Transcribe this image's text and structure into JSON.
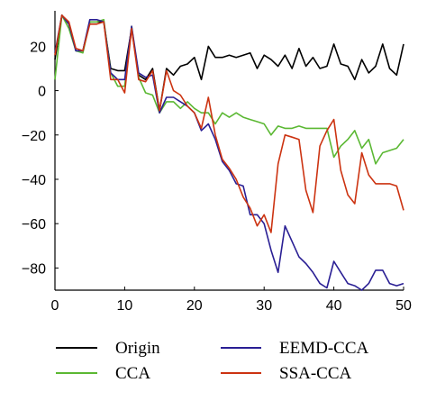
{
  "chart_data": {
    "type": "line",
    "title": "",
    "xlabel": "",
    "ylabel": "",
    "xlim": [
      0,
      50
    ],
    "ylim": [
      -90,
      36
    ],
    "x_ticks": [
      0,
      10,
      20,
      30,
      40,
      50
    ],
    "y_ticks": [
      20,
      0,
      -20,
      -40,
      -60,
      -80
    ],
    "grid": false,
    "legend_position": "bottom",
    "x": [
      0,
      1,
      2,
      3,
      4,
      5,
      6,
      7,
      8,
      9,
      10,
      11,
      12,
      13,
      14,
      15,
      16,
      17,
      18,
      19,
      20,
      21,
      22,
      23,
      24,
      25,
      26,
      27,
      28,
      29,
      30,
      31,
      32,
      33,
      34,
      35,
      36,
      37,
      38,
      39,
      40,
      41,
      42,
      43,
      44,
      45,
      46,
      47,
      48,
      49,
      50
    ],
    "series": [
      {
        "name": "Origin",
        "color": "#000000",
        "values": [
          14,
          34,
          30,
          18,
          18,
          31,
          31,
          31,
          10,
          9,
          9,
          28,
          7,
          5,
          10,
          -9,
          10,
          7,
          11,
          12,
          15,
          5,
          20,
          15,
          15,
          16,
          15,
          16,
          17,
          10,
          16,
          14,
          11,
          16,
          10,
          19,
          11,
          15,
          10,
          11,
          21,
          12,
          11,
          5,
          14,
          8,
          11,
          21,
          10,
          7,
          21
        ]
      },
      {
        "name": "CCA",
        "color": "#5bb833",
        "values": [
          5,
          34,
          28,
          18,
          17,
          31,
          31,
          32,
          8,
          2,
          2,
          29,
          6,
          -1,
          -2,
          -10,
          -5,
          -5,
          -8,
          -5,
          -8,
          -10,
          -10,
          -15,
          -10,
          -12,
          -10,
          -12,
          -13,
          -14,
          -15,
          -20,
          -16,
          -17,
          -17,
          -16,
          -17,
          -17,
          -17,
          -17,
          -30,
          -25,
          -22,
          -18,
          -26,
          -22,
          -33,
          -28,
          -27,
          -26,
          -22
        ]
      },
      {
        "name": "EEMD-CCA",
        "color": "#2a1f94",
        "values": [
          17,
          34,
          30,
          18,
          18,
          32,
          32,
          31,
          8,
          5,
          5,
          29,
          8,
          6,
          7,
          -10,
          -3,
          -3,
          -5,
          -7,
          -10,
          -18,
          -15,
          -22,
          -32,
          -36,
          -42,
          -43,
          -56,
          -56,
          -60,
          -72,
          -82,
          -61,
          -68,
          -75,
          -78,
          -82,
          -87,
          -89,
          -77,
          -82,
          -87,
          -88,
          -90,
          -87,
          -81,
          -81,
          -87,
          -88,
          -87
        ]
      },
      {
        "name": "SSA-CCA",
        "color": "#cc3311",
        "values": [
          16,
          34,
          31,
          19,
          18,
          30,
          30,
          31,
          5,
          5,
          -1,
          28,
          5,
          4,
          9,
          -9,
          9,
          0,
          -2,
          -7,
          -10,
          -17,
          -3,
          -20,
          -31,
          -35,
          -40,
          -48,
          -53,
          -61,
          -56,
          -64,
          -33,
          -20,
          -21,
          -22,
          -45,
          -55,
          -25,
          -18,
          -13,
          -36,
          -47,
          -51,
          -28,
          -38,
          -42,
          -42,
          -42,
          -43,
          -54
        ]
      }
    ]
  }
}
